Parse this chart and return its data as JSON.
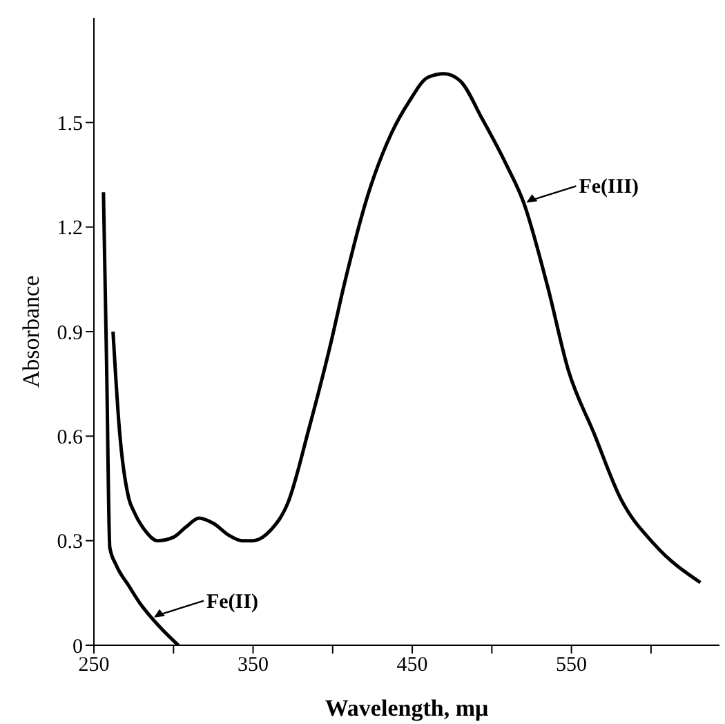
{
  "chart_data": {
    "type": "line",
    "xlabel": "Wavelength, mμ",
    "ylabel": "Absorbance",
    "xlim": [
      250,
      643
    ],
    "ylim": [
      0,
      1.8
    ],
    "xticks": [
      250,
      {
        "value": 300,
        "label": null
      },
      350,
      {
        "value": 400,
        "label": null
      },
      450,
      {
        "value": 500,
        "label": null
      },
      550,
      {
        "value": 600,
        "label": null
      }
    ],
    "yticks": [
      0,
      0.3,
      0.6,
      0.9,
      1.2,
      1.5
    ],
    "marker": "none",
    "line_style": "solid",
    "series": [
      {
        "color": "#000000",
        "x": [
          262,
          266,
          272,
          275,
          282,
          290,
          300,
          308,
          316,
          325,
          335,
          343,
          350,
          356,
          361,
          372,
          385,
          399,
          407,
          422,
          437,
          448,
          460,
          470,
          480,
          494,
          509,
          520,
          535,
          548,
          564,
          581,
          602,
          631
        ],
        "values": [
          0.9,
          0.62,
          0.42,
          0.385,
          0.33,
          0.3,
          0.31,
          0.34,
          0.365,
          0.35,
          0.315,
          0.3,
          0.3,
          0.31,
          0.33,
          0.41,
          0.62,
          0.87,
          1.03,
          1.29,
          1.47,
          1.56,
          1.63,
          1.64,
          1.62,
          1.51,
          1.38,
          1.27,
          1.03,
          0.79,
          0.61,
          0.42,
          0.29,
          0.18
        ]
      },
      {
        "color": "#000000",
        "x": [
          256,
          258,
          260,
          264,
          272,
          279,
          286,
          294,
          303
        ],
        "values": [
          1.3,
          0.8,
          0.28,
          0.23,
          0.17,
          0.12,
          0.08,
          0.04,
          0
        ]
      }
    ],
    "annotations": [
      {
        "text": "Fe(III)",
        "x": 520,
        "y": 1.27
      },
      {
        "text": "Fe(II)",
        "x": 286,
        "y": 0.08
      }
    ]
  }
}
